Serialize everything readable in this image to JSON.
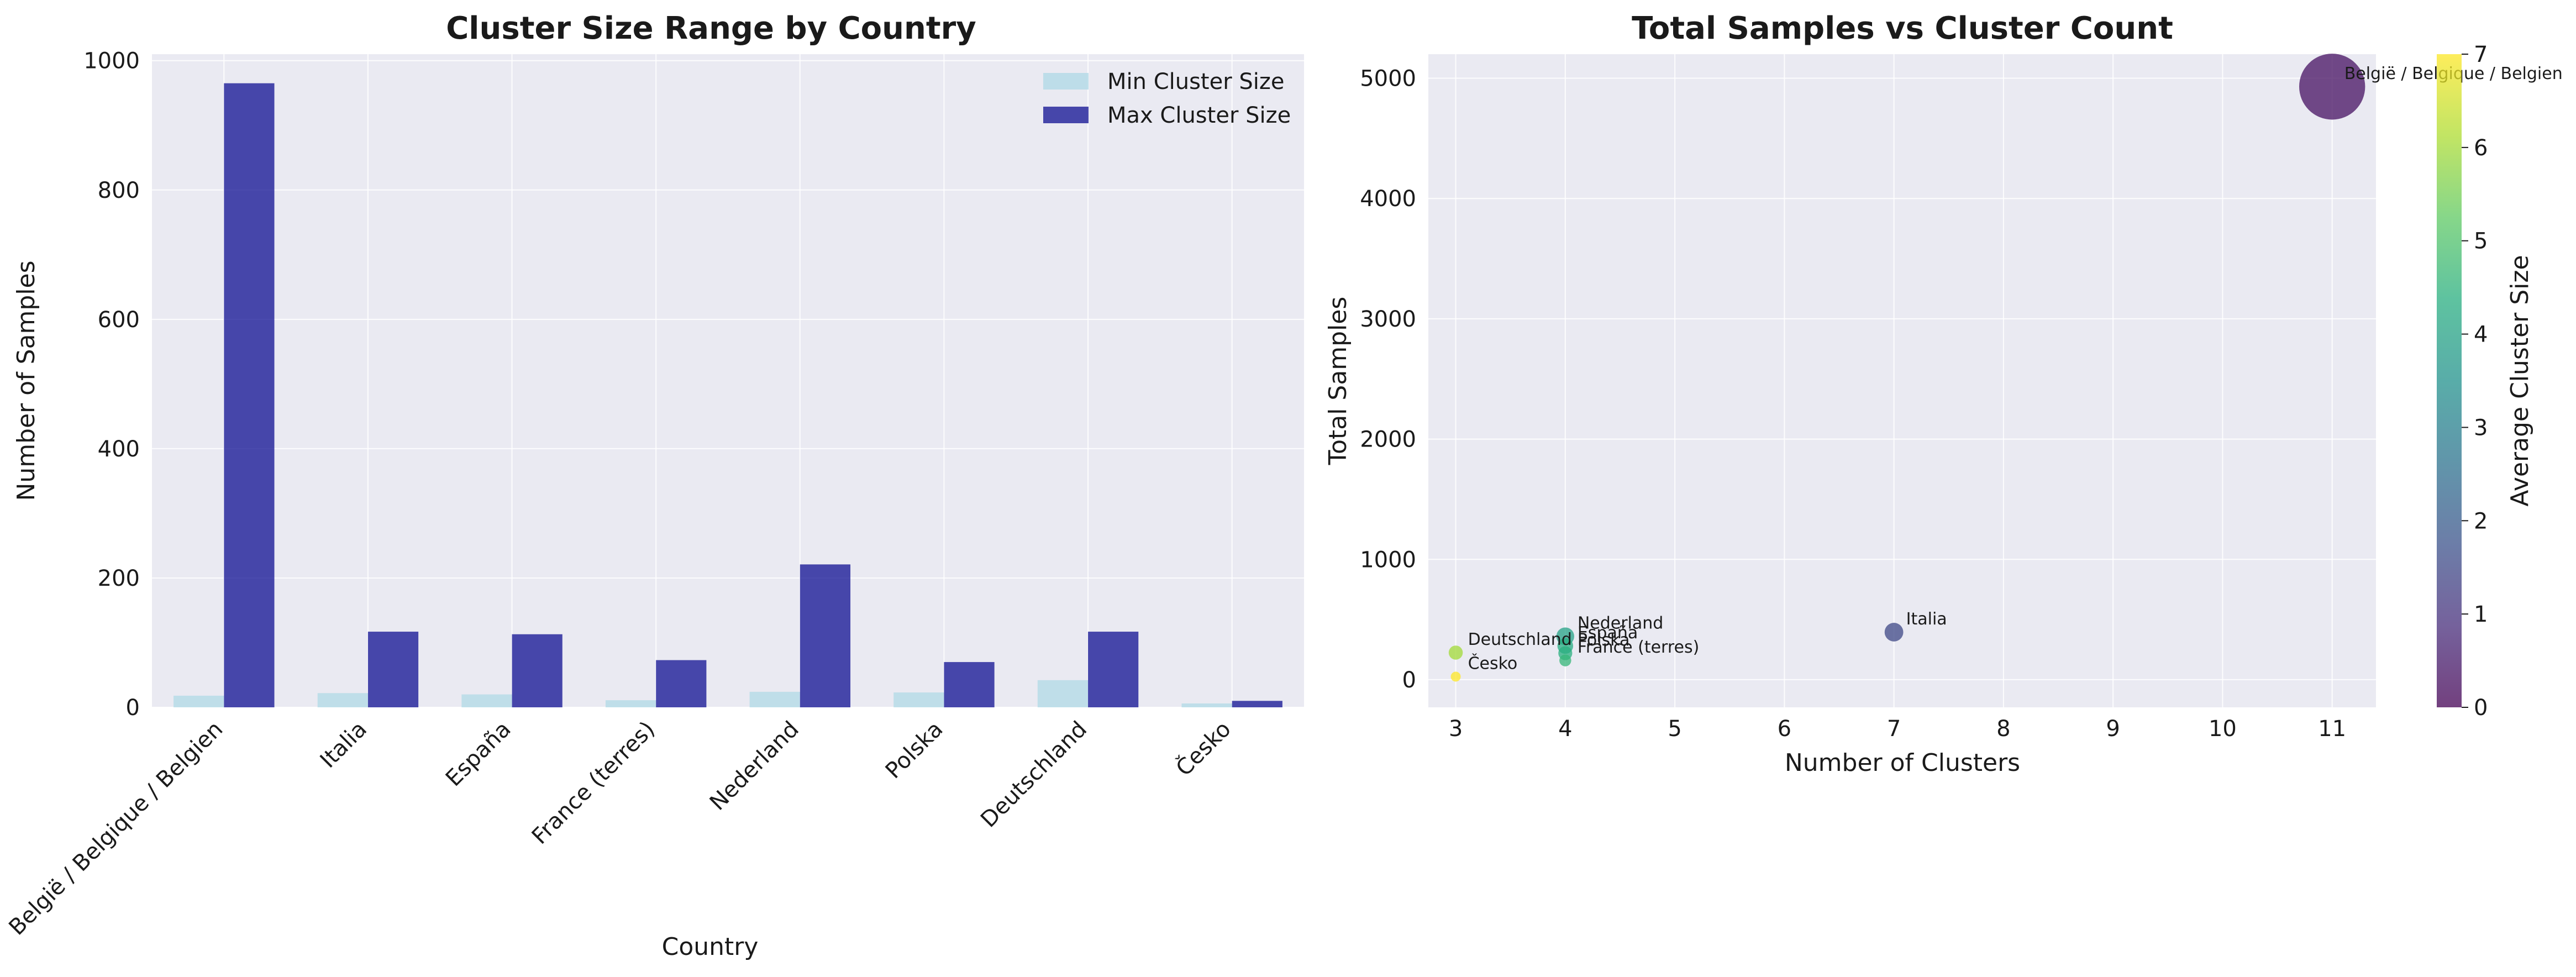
{
  "chart_data": [
    {
      "type": "bar",
      "title": "Cluster Size Range by Country",
      "xlabel": "Country",
      "ylabel": "Number of Samples",
      "ylim": [
        0,
        1010
      ],
      "yticks": [
        0,
        200,
        400,
        600,
        800,
        1000
      ],
      "grid": true,
      "legend_position": "top-right",
      "categories": [
        "België / Belgique / Belgien",
        "Italia",
        "España",
        "France (terres)",
        "Nederland",
        "Polska",
        "Deutschland",
        "Česko"
      ],
      "series": [
        {
          "name": "Min Cluster Size",
          "color": "#add8e6",
          "values": [
            18,
            22,
            20,
            11,
            24,
            23,
            42,
            6
          ]
        },
        {
          "name": "Max Cluster Size",
          "color": "#00008b",
          "values": [
            965,
            117,
            113,
            73,
            221,
            70,
            117,
            10
          ]
        }
      ]
    },
    {
      "type": "scatter",
      "title": "Total Samples vs Cluster Count",
      "xlabel": "Number of Clusters",
      "ylabel": "Total Samples",
      "xlim": [
        2.75,
        11.4
      ],
      "ylim": [
        -230,
        5200
      ],
      "xticks": [
        3,
        4,
        5,
        6,
        7,
        8,
        9,
        10,
        11
      ],
      "yticks": [
        0,
        1000,
        2000,
        3000,
        4000,
        5000
      ],
      "grid": true,
      "colorbar": {
        "label": "Average Cluster Size",
        "min": 0,
        "max": 7,
        "ticks": [
          0,
          1,
          2,
          3,
          4,
          5,
          6,
          7
        ],
        "colormap": "viridis"
      },
      "points": [
        {
          "label": "België / Belgique / Belgien",
          "x": 11,
          "y": 4930,
          "color_value": 0.3
        },
        {
          "label": "Italia",
          "x": 7,
          "y": 395,
          "color_value": 1.5
        },
        {
          "label": "Nederland",
          "x": 4,
          "y": 360,
          "color_value": 4.0
        },
        {
          "label": "España",
          "x": 4,
          "y": 280,
          "color_value": 4.3
        },
        {
          "label": "Polska",
          "x": 4,
          "y": 220,
          "color_value": 4.4
        },
        {
          "label": "France (terres)",
          "x": 4,
          "y": 160,
          "color_value": 4.6
        },
        {
          "label": "Deutschland",
          "x": 3,
          "y": 225,
          "color_value": 6.0
        },
        {
          "label": "Česko",
          "x": 3,
          "y": 25,
          "color_value": 7.0
        }
      ]
    }
  ]
}
